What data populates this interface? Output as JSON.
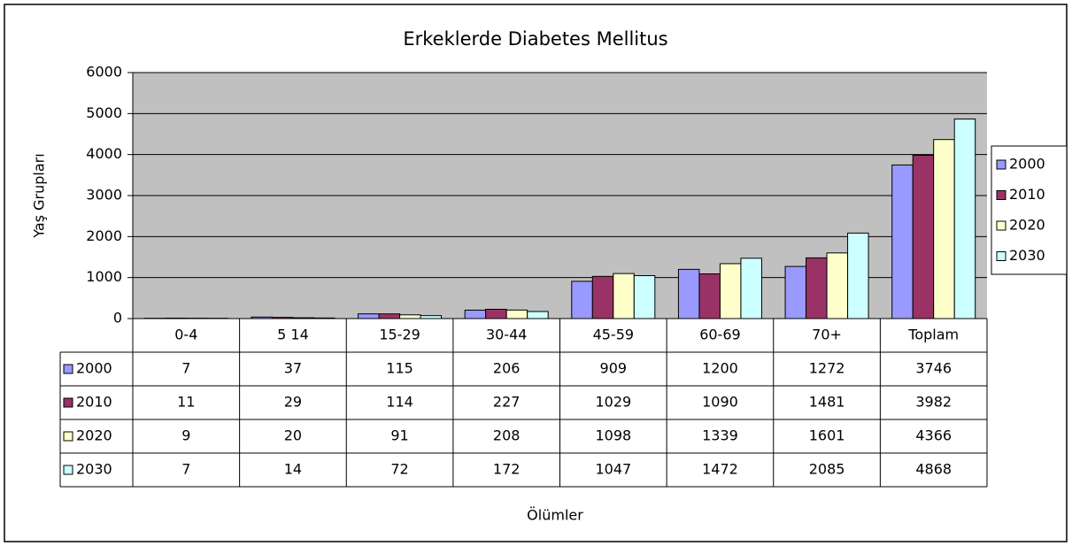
{
  "chart_data": {
    "type": "bar",
    "title": "Erkeklerde Diabetes Mellitus",
    "y_label": "Yaş Grupları",
    "x_label": "Ölümler",
    "categories": [
      "0-4",
      "5 14",
      "15-29",
      "30-44",
      "45-59",
      "60-69",
      "70+",
      "Toplam"
    ],
    "series": [
      {
        "name": "2000",
        "color": "#9999ff",
        "values": [
          7,
          37,
          115,
          206,
          909,
          1200,
          1272,
          3746
        ]
      },
      {
        "name": "2010",
        "color": "#993366",
        "values": [
          11,
          29,
          114,
          227,
          1029,
          1090,
          1481,
          3982
        ]
      },
      {
        "name": "2020",
        "color": "#ffffcc",
        "values": [
          9,
          20,
          91,
          208,
          1098,
          1339,
          1601,
          4366
        ]
      },
      {
        "name": "2030",
        "color": "#ccffff",
        "values": [
          7,
          14,
          72,
          172,
          1047,
          1472,
          2085,
          4868
        ]
      }
    ],
    "ylim": [
      0,
      6000
    ],
    "yticks": [
      0,
      1000,
      2000,
      3000,
      4000,
      5000,
      6000
    ],
    "grid": true,
    "legend": "right",
    "data_table": true
  }
}
